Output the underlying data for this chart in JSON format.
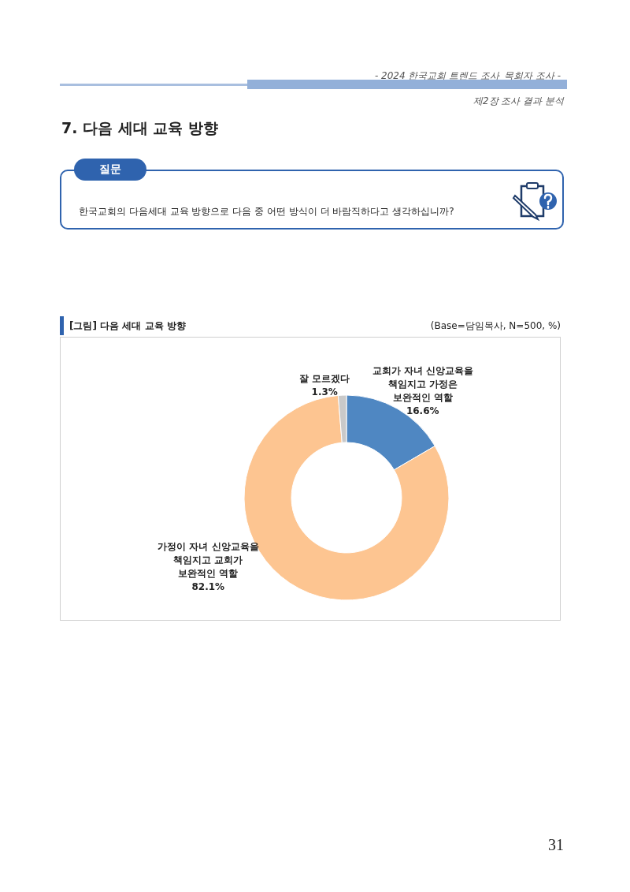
{
  "chart_data": {
    "type": "donut",
    "title": "[그림] 다음 세대 교육 방향",
    "subtitle": "(Base=담임목사, N=500, %)",
    "categories": [
      "교회가 자녀 신앙교육을 책임지고 가정은 보완적인 역할",
      "가정이 자녀 신앙교육을 책임지고 교회가 보완적인 역할",
      "잘 모르겠다"
    ],
    "values": [
      16.6,
      82.1,
      1.3
    ],
    "colors": [
      "#4f87c2",
      "#fdc591",
      "#c9c9c9"
    ],
    "value_labels": [
      "16.6%",
      "82.1%",
      "1.3%"
    ],
    "annotations": [
      "- 2024 한국교회 트렌드 조사_목회자 조사 -",
      "제2장 조사 결과 분석",
      "7. 다음 세대 교육 방향",
      "질문",
      "한국교회의 다음세대 교육 방향으로 다음 중 어떤 방식이 더 바람직하다고 생각하십니까?",
      "31"
    ]
  }
}
